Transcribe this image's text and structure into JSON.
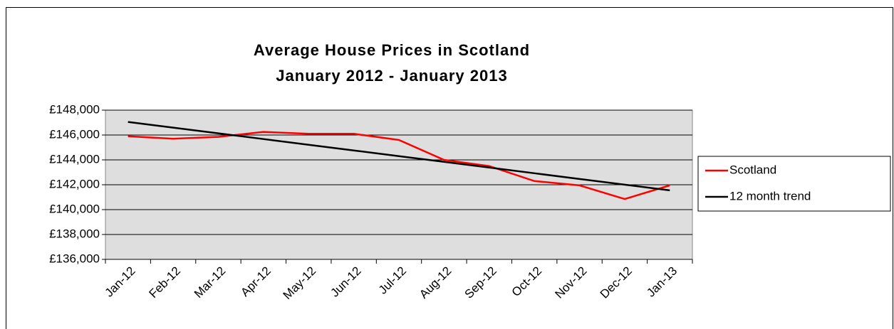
{
  "chart_data": {
    "type": "line",
    "title": "Average House Prices in Scotland",
    "subtitle": "January 2012 - January 2013",
    "categories": [
      "Jan-12",
      "Feb-12",
      "Mar-12",
      "Apr-12",
      "May-12",
      "Jun-12",
      "Jul-12",
      "Aug-12",
      "Sep-12",
      "Oct-12",
      "Nov-12",
      "Dec-12",
      "Jan-13"
    ],
    "series": [
      {
        "name": "Scotland",
        "color": "#ff0000",
        "values": [
          145900,
          145700,
          145850,
          146250,
          146100,
          146100,
          145600,
          144000,
          143500,
          142300,
          141950,
          140850,
          141950
        ]
      },
      {
        "name": "12 month trend",
        "color": "#000000",
        "values": [
          147050,
          146592,
          146133,
          145675,
          145217,
          144758,
          144300,
          143842,
          143383,
          142925,
          142467,
          142008,
          141550
        ]
      }
    ],
    "ylim": [
      136000,
      148000
    ],
    "yticks": [
      {
        "value": 136000,
        "label": "£136,000"
      },
      {
        "value": 138000,
        "label": "£138,000"
      },
      {
        "value": 140000,
        "label": "£140,000"
      },
      {
        "value": 142000,
        "label": "£142,000"
      },
      {
        "value": 144000,
        "label": "£144,000"
      },
      {
        "value": 146000,
        "label": "£146,000"
      },
      {
        "value": 148000,
        "label": "£148,000"
      }
    ],
    "grid": true,
    "legend": "right"
  }
}
